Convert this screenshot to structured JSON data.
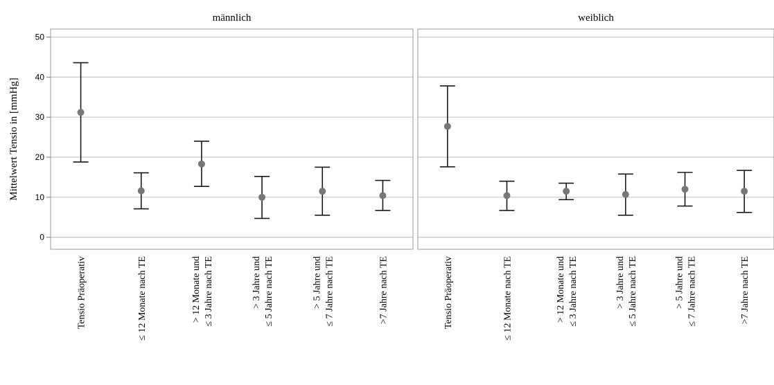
{
  "chart_data": {
    "type": "errorbar",
    "ylabel": "Mittelwert Tensio in [mmHg]",
    "ylim": [
      -3,
      52
    ],
    "yticks": [
      0,
      10,
      20,
      30,
      40,
      50
    ],
    "grid": true,
    "categories": [
      [
        "Tensio Präoperativ"
      ],
      [
        "≤ 12 Monate nach TE"
      ],
      [
        "> 12 Monate und",
        "≤ 3 Jahre nach TE"
      ],
      [
        "> 3 Jahre und",
        "≤ 5 Jahre nach TE"
      ],
      [
        "> 5 Jahre und",
        "≤ 7 Jahre nach TE"
      ],
      [
        ">7 Jahre nach TE"
      ]
    ],
    "panels": [
      {
        "title": "männlich",
        "means": [
          31.2,
          11.6,
          18.3,
          10.0,
          11.5,
          10.4
        ],
        "lower": [
          18.8,
          7.1,
          12.7,
          4.7,
          5.5,
          6.7
        ],
        "upper": [
          43.6,
          16.1,
          24.0,
          15.2,
          17.5,
          14.2
        ]
      },
      {
        "title": "weiblich",
        "means": [
          27.7,
          10.4,
          11.5,
          10.7,
          12.0,
          11.5
        ],
        "lower": [
          17.6,
          6.7,
          9.4,
          5.5,
          7.8,
          6.2
        ],
        "upper": [
          37.8,
          14.0,
          13.5,
          15.8,
          16.2,
          16.7
        ]
      }
    ]
  }
}
